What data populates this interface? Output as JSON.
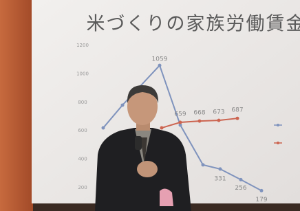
{
  "slide": {
    "title": "米づくりの家族労働賃金",
    "chart": {
      "ylim": [
        200,
        1200
      ],
      "yticks": [
        1200,
        1000,
        800,
        600,
        400,
        200
      ],
      "series": [
        {
          "color": "#7f93bd",
          "values": [
            620,
            780,
            1059,
            640,
            360,
            331,
            256,
            179
          ]
        },
        {
          "color": "#cc6450",
          "values": [
            620,
            659,
            668,
            673,
            687
          ]
        }
      ]
    }
  }
}
